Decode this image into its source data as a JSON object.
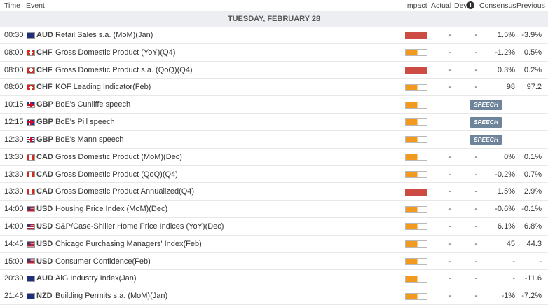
{
  "header": {
    "time": "Time",
    "event": "Event",
    "impact": "Impact",
    "actual": "Actual",
    "dev": "Dev",
    "consensus": "Consensus",
    "previous": "Previous"
  },
  "date": "TUESDAY, FEBRUARY 28",
  "rows": [
    {
      "time": "00:30",
      "currency": "AUD",
      "event": "Retail Sales s.a. (MoM)(Jan)",
      "impact": "high",
      "actual": "-",
      "dev": "-",
      "consensus": "1.5%",
      "previous": "-3.9%"
    },
    {
      "time": "08:00",
      "currency": "CHF",
      "event": "Gross Domestic Product (YoY)(Q4)",
      "impact": "medium",
      "actual": "-",
      "dev": "-",
      "consensus": "-1.2%",
      "previous": "0.5%"
    },
    {
      "time": "08:00",
      "currency": "CHF",
      "event": "Gross Domestic Product s.a. (QoQ)(Q4)",
      "impact": "high",
      "actual": "-",
      "dev": "-",
      "consensus": "0.3%",
      "previous": "0.2%"
    },
    {
      "time": "08:00",
      "currency": "CHF",
      "event": "KOF Leading Indicator(Feb)",
      "impact": "medium",
      "actual": "-",
      "dev": "-",
      "consensus": "98",
      "previous": "97.2"
    },
    {
      "time": "10:15",
      "currency": "GBP",
      "event": "BoE's Cunliffe speech",
      "impact": "medium",
      "badge": "SPEECH"
    },
    {
      "time": "12:15",
      "currency": "GBP",
      "event": "BoE's Pill speech",
      "impact": "medium",
      "badge": "SPEECH"
    },
    {
      "time": "12:30",
      "currency": "GBP",
      "event": "BoE's Mann speech",
      "impact": "medium",
      "badge": "SPEECH"
    },
    {
      "time": "13:30",
      "currency": "CAD",
      "event": "Gross Domestic Product (MoM)(Dec)",
      "impact": "medium",
      "actual": "-",
      "dev": "-",
      "consensus": "0%",
      "previous": "0.1%"
    },
    {
      "time": "13:30",
      "currency": "CAD",
      "event": "Gross Domestic Product (QoQ)(Q4)",
      "impact": "medium",
      "actual": "-",
      "dev": "-",
      "consensus": "-0.2%",
      "previous": "0.7%"
    },
    {
      "time": "13:30",
      "currency": "CAD",
      "event": "Gross Domestic Product Annualized(Q4)",
      "impact": "high",
      "actual": "-",
      "dev": "-",
      "consensus": "1.5%",
      "previous": "2.9%"
    },
    {
      "time": "14:00",
      "currency": "USD",
      "event": "Housing Price Index (MoM)(Dec)",
      "impact": "medium",
      "actual": "-",
      "dev": "-",
      "consensus": "-0.6%",
      "previous": "-0.1%"
    },
    {
      "time": "14:00",
      "currency": "USD",
      "event": "S&P/Case-Shiller Home Price Indices (YoY)(Dec)",
      "impact": "medium",
      "actual": "-",
      "dev": "-",
      "consensus": "6.1%",
      "previous": "6.8%"
    },
    {
      "time": "14:45",
      "currency": "USD",
      "event": "Chicago Purchasing Managers' Index(Feb)",
      "impact": "medium",
      "actual": "-",
      "dev": "-",
      "consensus": "45",
      "previous": "44.3"
    },
    {
      "time": "15:00",
      "currency": "USD",
      "event": "Consumer Confidence(Feb)",
      "impact": "medium",
      "actual": "-",
      "dev": "-",
      "consensus": "-",
      "previous": "-"
    },
    {
      "time": "20:30",
      "currency": "AUD",
      "event": "AiG Industry Index(Jan)",
      "impact": "medium",
      "actual": "-",
      "dev": "-",
      "consensus": "-",
      "previous": "-11.6"
    },
    {
      "time": "21:45",
      "currency": "NZD",
      "event": "Building Permits s.a. (MoM)(Jan)",
      "impact": "medium",
      "actual": "-",
      "dev": "-",
      "consensus": "-1%",
      "previous": "-7.2%"
    }
  ]
}
